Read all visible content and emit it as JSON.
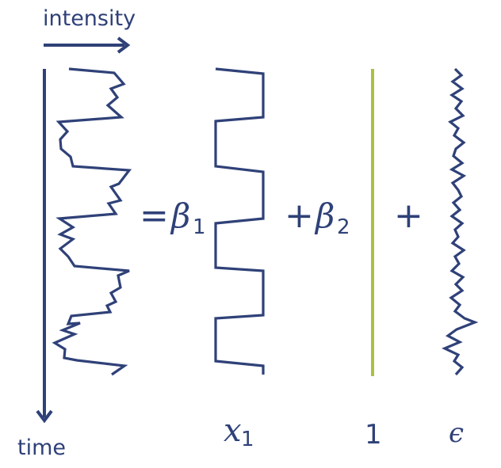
{
  "axes": {
    "x_label": "intensity",
    "y_label": "time"
  },
  "equation": {
    "equals": "=",
    "beta1_symbol": "β",
    "beta1_index": "1",
    "plus_1": "+",
    "beta2_symbol": "β",
    "beta2_index": "2",
    "plus_2": "+"
  },
  "regressors": {
    "x1_symbol": "x",
    "x1_index": "1",
    "constant_label": "1",
    "error_label": "ϵ"
  },
  "colors": {
    "signal": "#2f4178",
    "constant": "#a9c23f",
    "text": "#2f4178"
  }
}
